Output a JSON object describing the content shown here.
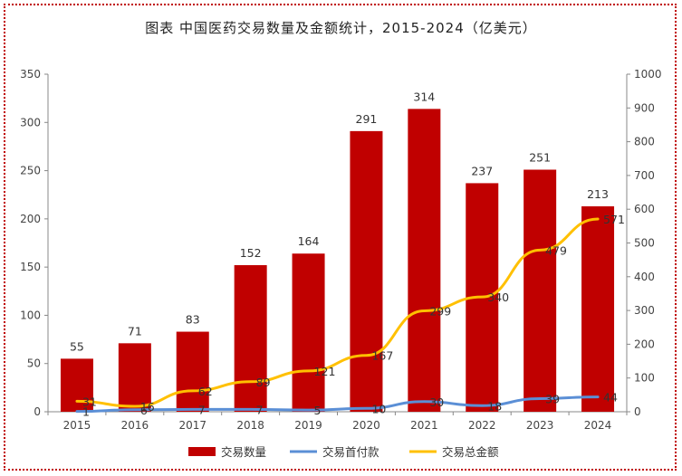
{
  "title": "图表 中国医药交易数量及金额统计，2015-2024（亿美元）",
  "chart_data": {
    "type": "bar",
    "categories": [
      "2015",
      "2016",
      "2017",
      "2018",
      "2019",
      "2020",
      "2021",
      "2022",
      "2023",
      "2024"
    ],
    "series": [
      {
        "name": "交易数量",
        "type": "bar",
        "axis": "left",
        "color": "#c00000",
        "values": [
          55,
          71,
          83,
          152,
          164,
          291,
          314,
          237,
          251,
          213
        ]
      },
      {
        "name": "交易首付款",
        "type": "line",
        "axis": "right",
        "color": "#5b8fd6",
        "values": [
          1,
          6,
          7,
          7,
          5,
          10,
          30,
          18,
          39,
          44
        ]
      },
      {
        "name": "交易总金额",
        "type": "line",
        "axis": "right",
        "color": "#ffc000",
        "values": [
          31,
          16,
          62,
          89,
          121,
          167,
          299,
          340,
          479,
          571
        ]
      }
    ],
    "y_left": {
      "min": 0,
      "max": 350,
      "step": 50
    },
    "y_right": {
      "min": 0,
      "max": 1000,
      "step": 100
    },
    "bar_labels": [
      "55",
      "71",
      "83",
      "152",
      "164",
      "291",
      "314",
      "237",
      "251",
      "213"
    ],
    "first_line_labels": [
      "1",
      "6",
      "7",
      "7",
      "5",
      "10",
      "30",
      "18",
      "39",
      "44"
    ],
    "total_labels": [
      "31",
      "16",
      "62",
      "89",
      "121",
      "167",
      "299",
      "340",
      "479",
      "571"
    ],
    "legend_position": "bottom"
  }
}
